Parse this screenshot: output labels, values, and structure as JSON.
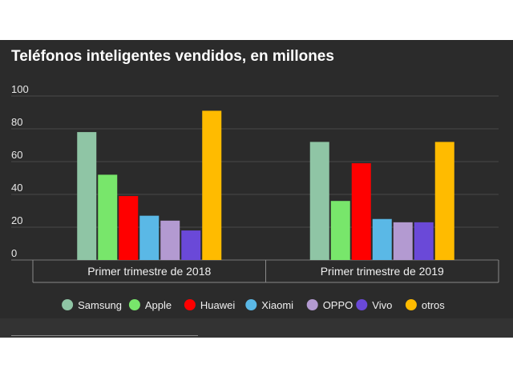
{
  "chart_data": {
    "type": "bar",
    "title": "Teléfonos inteligentes vendidos, en millones",
    "categories": [
      "Primer trimestre de 2018",
      "Primer trimestre de 2019"
    ],
    "series": [
      {
        "name": "Samsung",
        "color": "#8fc5a5",
        "values": [
          78,
          72
        ]
      },
      {
        "name": "Apple",
        "color": "#78e66b",
        "values": [
          52,
          36
        ]
      },
      {
        "name": "Huawei",
        "color": "#ff0000",
        "values": [
          39,
          59
        ]
      },
      {
        "name": "Xiaomi",
        "color": "#5ab8e6",
        "values": [
          27,
          25
        ]
      },
      {
        "name": "OPPO",
        "color": "#b39ad1",
        "values": [
          24,
          23
        ]
      },
      {
        "name": "Vivo",
        "color": "#6a49d8",
        "values": [
          18,
          23
        ]
      },
      {
        "name": "otros",
        "color": "#ffbb00",
        "values": [
          91,
          72
        ]
      }
    ],
    "y_ticks": [
      0,
      20,
      40,
      60,
      80,
      100
    ],
    "ylim": [
      0,
      100
    ],
    "grid": true,
    "legend": "bottom"
  }
}
